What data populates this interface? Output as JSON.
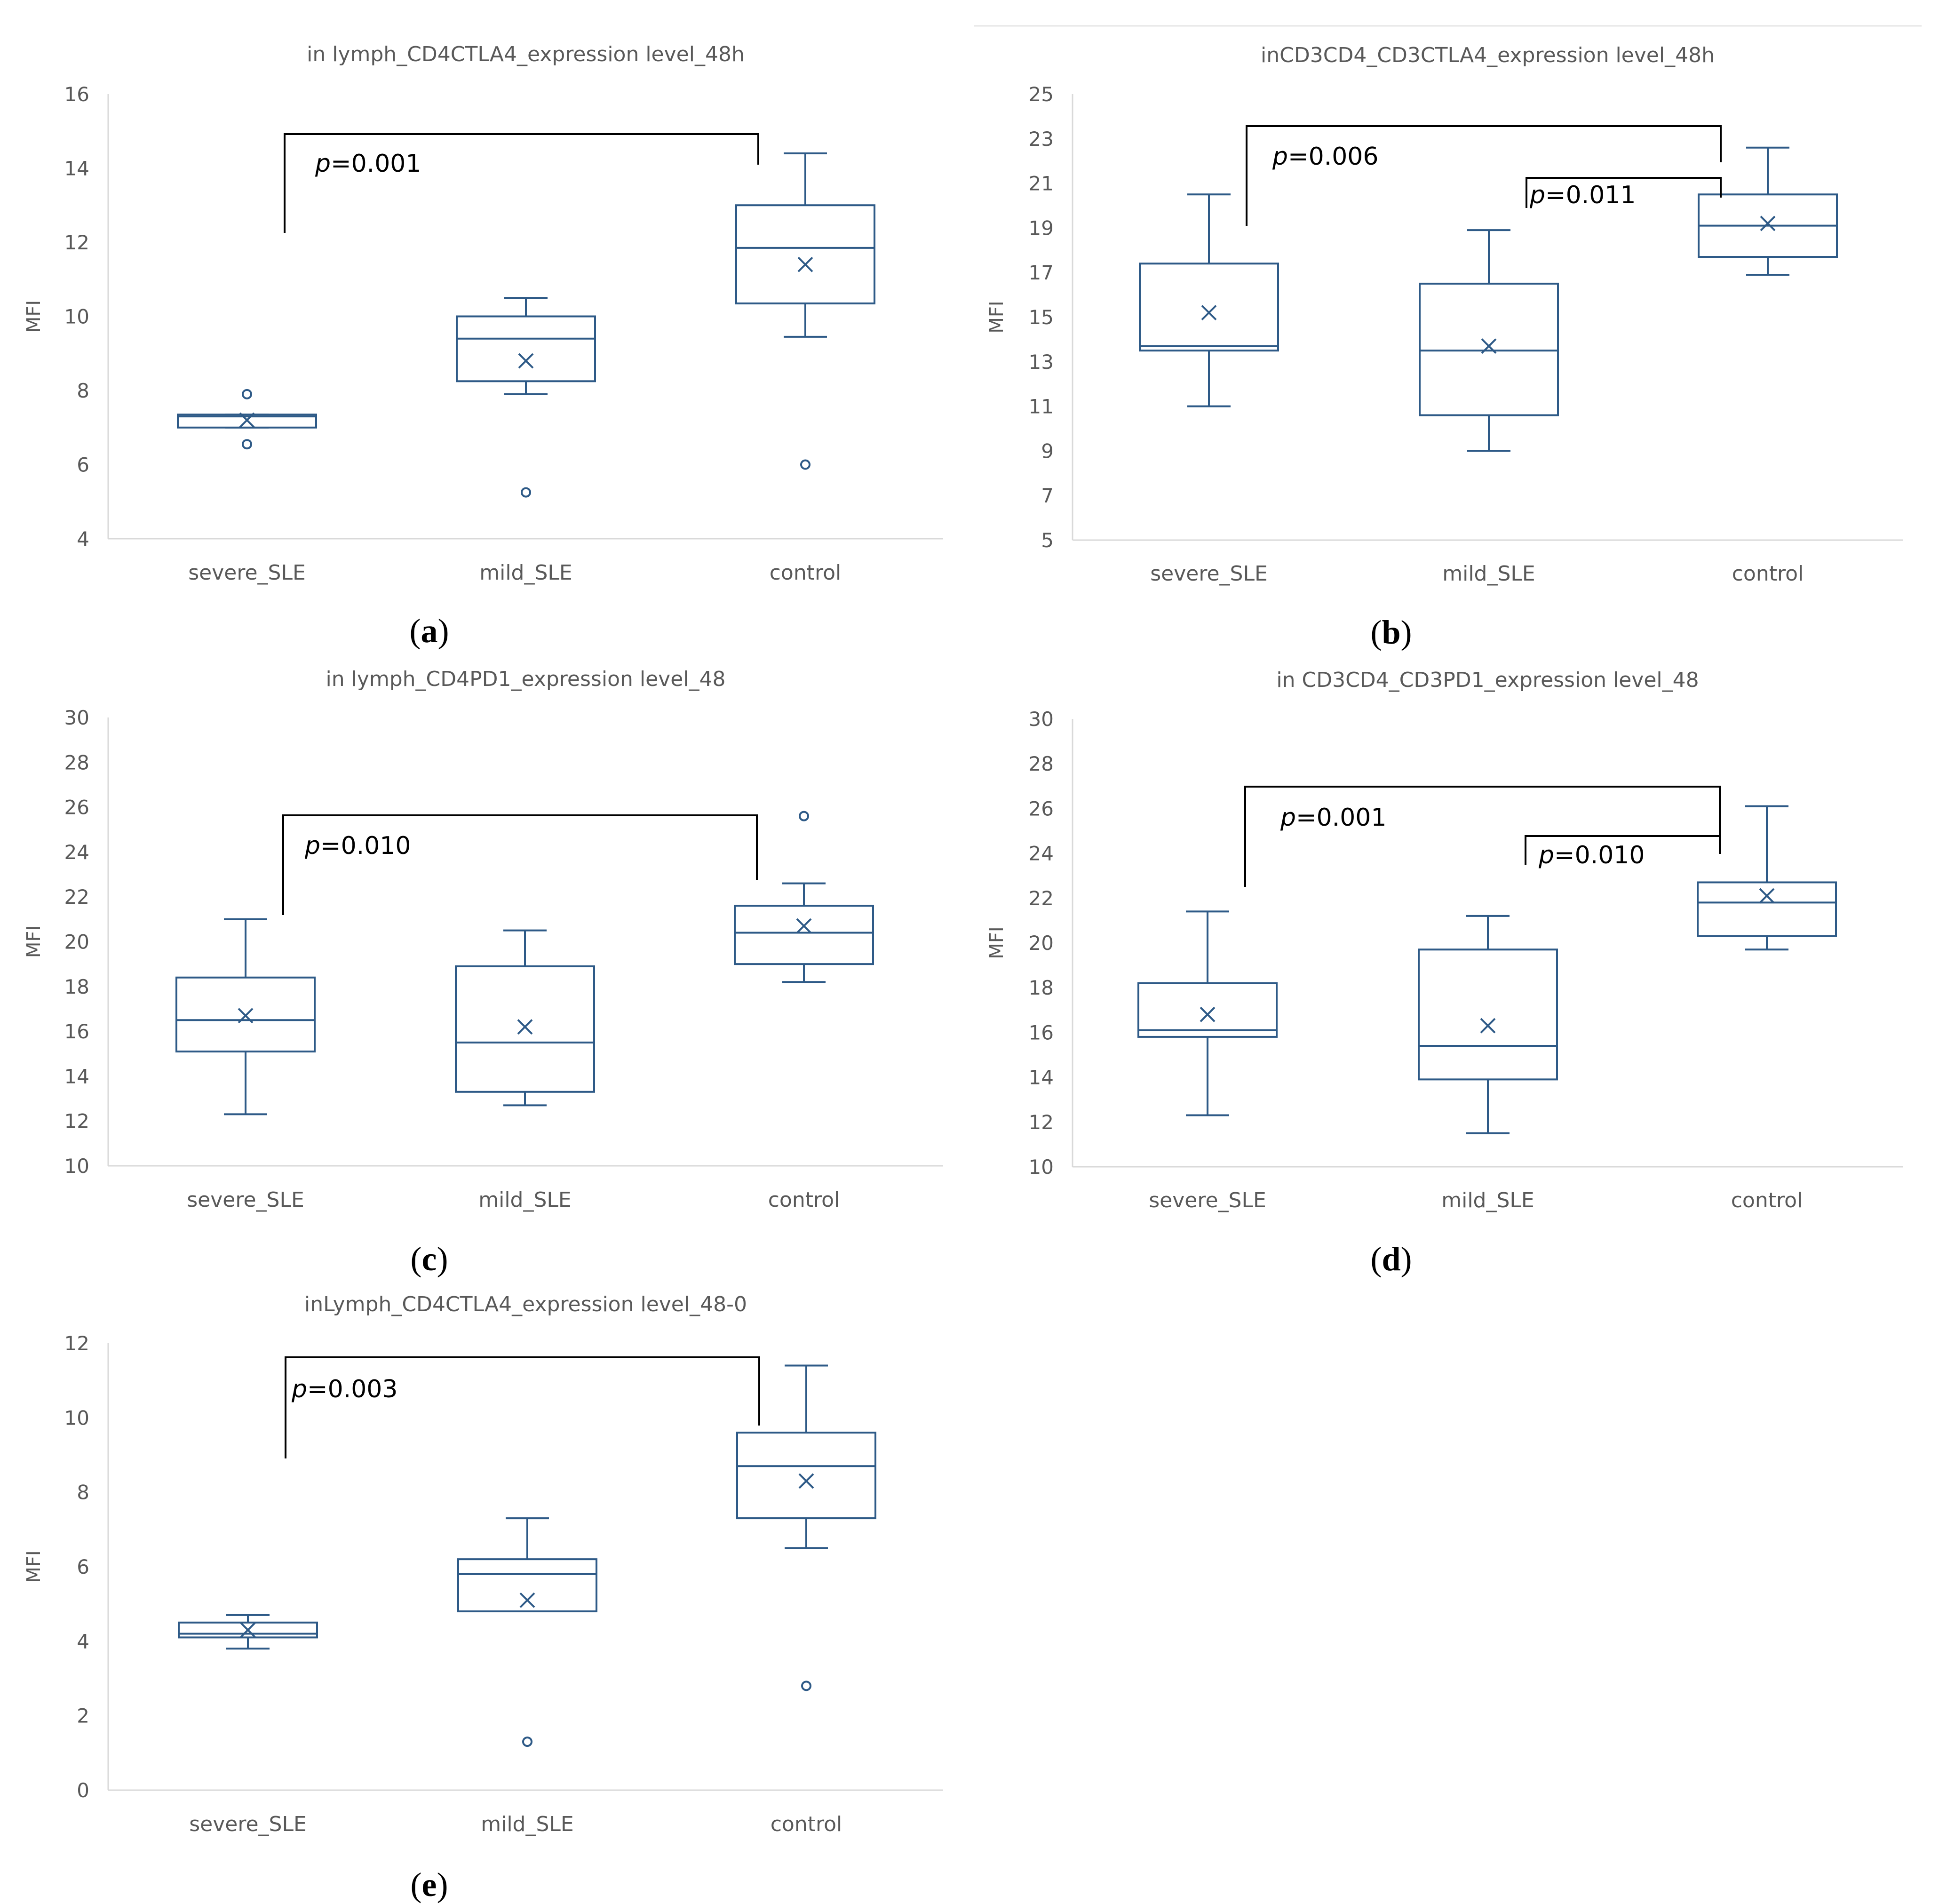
{
  "chart_data": [
    {
      "type": "box",
      "panel_label": [
        "(",
        "a",
        ")"
      ],
      "title": "in lymph_CD4CTLA4_expression level_48h",
      "ylabel": "MFI",
      "ylim": [
        4,
        16
      ],
      "yticks": [
        4,
        6,
        8,
        10,
        12,
        14,
        16
      ],
      "categories": [
        "severe_SLE",
        "mild_SLE",
        "control"
      ],
      "boxes": [
        {
          "whisker_low": 7.0,
          "q1": 7.0,
          "median": 7.3,
          "q3": 7.35,
          "whisker_high": 7.35,
          "mean": 7.2,
          "outliers": [
            7.9,
            6.55
          ]
        },
        {
          "whisker_low": 7.9,
          "q1": 8.25,
          "median": 9.4,
          "q3": 10.0,
          "whisker_high": 10.5,
          "mean": 8.8,
          "outliers": [
            5.25
          ]
        },
        {
          "whisker_low": 9.45,
          "q1": 10.35,
          "median": 11.85,
          "q3": 13.0,
          "whisker_high": 14.4,
          "mean": 11.4,
          "outliers": [
            6.0
          ]
        }
      ],
      "significance": [
        {
          "from": 0,
          "to": 2,
          "p": "0.001"
        }
      ]
    },
    {
      "type": "box",
      "panel_label": [
        "(",
        "b",
        ")"
      ],
      "title": "inCD3CD4_CD3CTLA4_expression level_48h",
      "ylabel": "MFI",
      "ylim": [
        5,
        25
      ],
      "yticks": [
        5,
        7,
        9,
        11,
        13,
        15,
        17,
        19,
        21,
        23,
        25
      ],
      "categories": [
        "severe_SLE",
        "mild_SLE",
        "control"
      ],
      "boxes": [
        {
          "whisker_low": 11.0,
          "q1": 13.5,
          "median": 13.7,
          "q3": 17.4,
          "whisker_high": 20.5,
          "mean": 15.2,
          "outliers": []
        },
        {
          "whisker_low": 9.0,
          "q1": 10.6,
          "median": 13.5,
          "q3": 16.5,
          "whisker_high": 18.9,
          "mean": 13.7,
          "outliers": []
        },
        {
          "whisker_low": 16.9,
          "q1": 17.7,
          "median": 19.1,
          "q3": 20.5,
          "whisker_high": 22.6,
          "mean": 19.2,
          "outliers": []
        }
      ],
      "significance": [
        {
          "from": 0,
          "to": 2,
          "p": "0.006"
        },
        {
          "from": 1,
          "to": 2,
          "p": "0.011"
        }
      ]
    },
    {
      "type": "box",
      "panel_label": [
        "(",
        "c",
        ")"
      ],
      "title": "in lymph_CD4PD1_expression level_48",
      "ylabel": "MFI",
      "ylim": [
        10,
        30
      ],
      "yticks": [
        10,
        12,
        14,
        16,
        18,
        20,
        22,
        24,
        26,
        28,
        30
      ],
      "categories": [
        "severe_SLE",
        "mild_SLE",
        "control"
      ],
      "boxes": [
        {
          "whisker_low": 12.3,
          "q1": 15.1,
          "median": 16.5,
          "q3": 18.4,
          "whisker_high": 21.0,
          "mean": 16.7,
          "outliers": []
        },
        {
          "whisker_low": 12.7,
          "q1": 13.3,
          "median": 15.5,
          "q3": 18.9,
          "whisker_high": 20.5,
          "mean": 16.2,
          "outliers": []
        },
        {
          "whisker_low": 18.2,
          "q1": 19.0,
          "median": 20.4,
          "q3": 21.6,
          "whisker_high": 22.6,
          "mean": 20.7,
          "outliers": [
            25.6
          ]
        }
      ],
      "significance": [
        {
          "from": 0,
          "to": 2,
          "p": "0.010"
        }
      ]
    },
    {
      "type": "box",
      "panel_label": [
        "(",
        "d",
        ")"
      ],
      "title": "in CD3CD4_CD3PD1_expression level_48",
      "ylabel": "MFI",
      "ylim": [
        10,
        30
      ],
      "yticks": [
        10,
        12,
        14,
        16,
        18,
        20,
        22,
        24,
        26,
        28,
        30
      ],
      "categories": [
        "severe_SLE",
        "mild_SLE",
        "control"
      ],
      "boxes": [
        {
          "whisker_low": 12.3,
          "q1": 15.8,
          "median": 16.1,
          "q3": 18.2,
          "whisker_high": 21.4,
          "mean": 16.8,
          "outliers": []
        },
        {
          "whisker_low": 11.5,
          "q1": 13.9,
          "median": 15.4,
          "q3": 19.7,
          "whisker_high": 21.2,
          "mean": 16.3,
          "outliers": []
        },
        {
          "whisker_low": 19.7,
          "q1": 20.3,
          "median": 21.8,
          "q3": 22.7,
          "whisker_high": 26.1,
          "mean": 22.1,
          "outliers": []
        }
      ],
      "significance": [
        {
          "from": 0,
          "to": 2,
          "p": "0.001"
        },
        {
          "from": 1,
          "to": 2,
          "p": "0.010"
        }
      ]
    },
    {
      "type": "box",
      "panel_label": [
        "(",
        "e",
        ")"
      ],
      "title": "inLymph_CD4CTLA4_expression level_48-0",
      "ylabel": "MFI",
      "ylim": [
        0,
        12
      ],
      "yticks": [
        0,
        2,
        4,
        6,
        8,
        10,
        12
      ],
      "categories": [
        "severe_SLE",
        "mild_SLE",
        "control"
      ],
      "boxes": [
        {
          "whisker_low": 3.8,
          "q1": 4.1,
          "median": 4.2,
          "q3": 4.5,
          "whisker_high": 4.7,
          "mean": 4.3,
          "outliers": []
        },
        {
          "whisker_low": 4.8,
          "q1": 4.8,
          "median": 5.8,
          "q3": 6.2,
          "whisker_high": 7.3,
          "mean": 5.1,
          "outliers": [
            1.3
          ]
        },
        {
          "whisker_low": 6.5,
          "q1": 7.3,
          "median": 8.7,
          "q3": 9.6,
          "whisker_high": 11.4,
          "mean": 8.3,
          "outliers": [
            2.8
          ]
        }
      ],
      "significance": [
        {
          "from": 0,
          "to": 2,
          "p": "0.003"
        }
      ]
    }
  ],
  "p_prefix": "p",
  "p_equals": "=",
  "colors": {
    "box": "#2e5a87",
    "axis": "#d9d9d9",
    "text": "#595959",
    "bracket": "#000000"
  }
}
